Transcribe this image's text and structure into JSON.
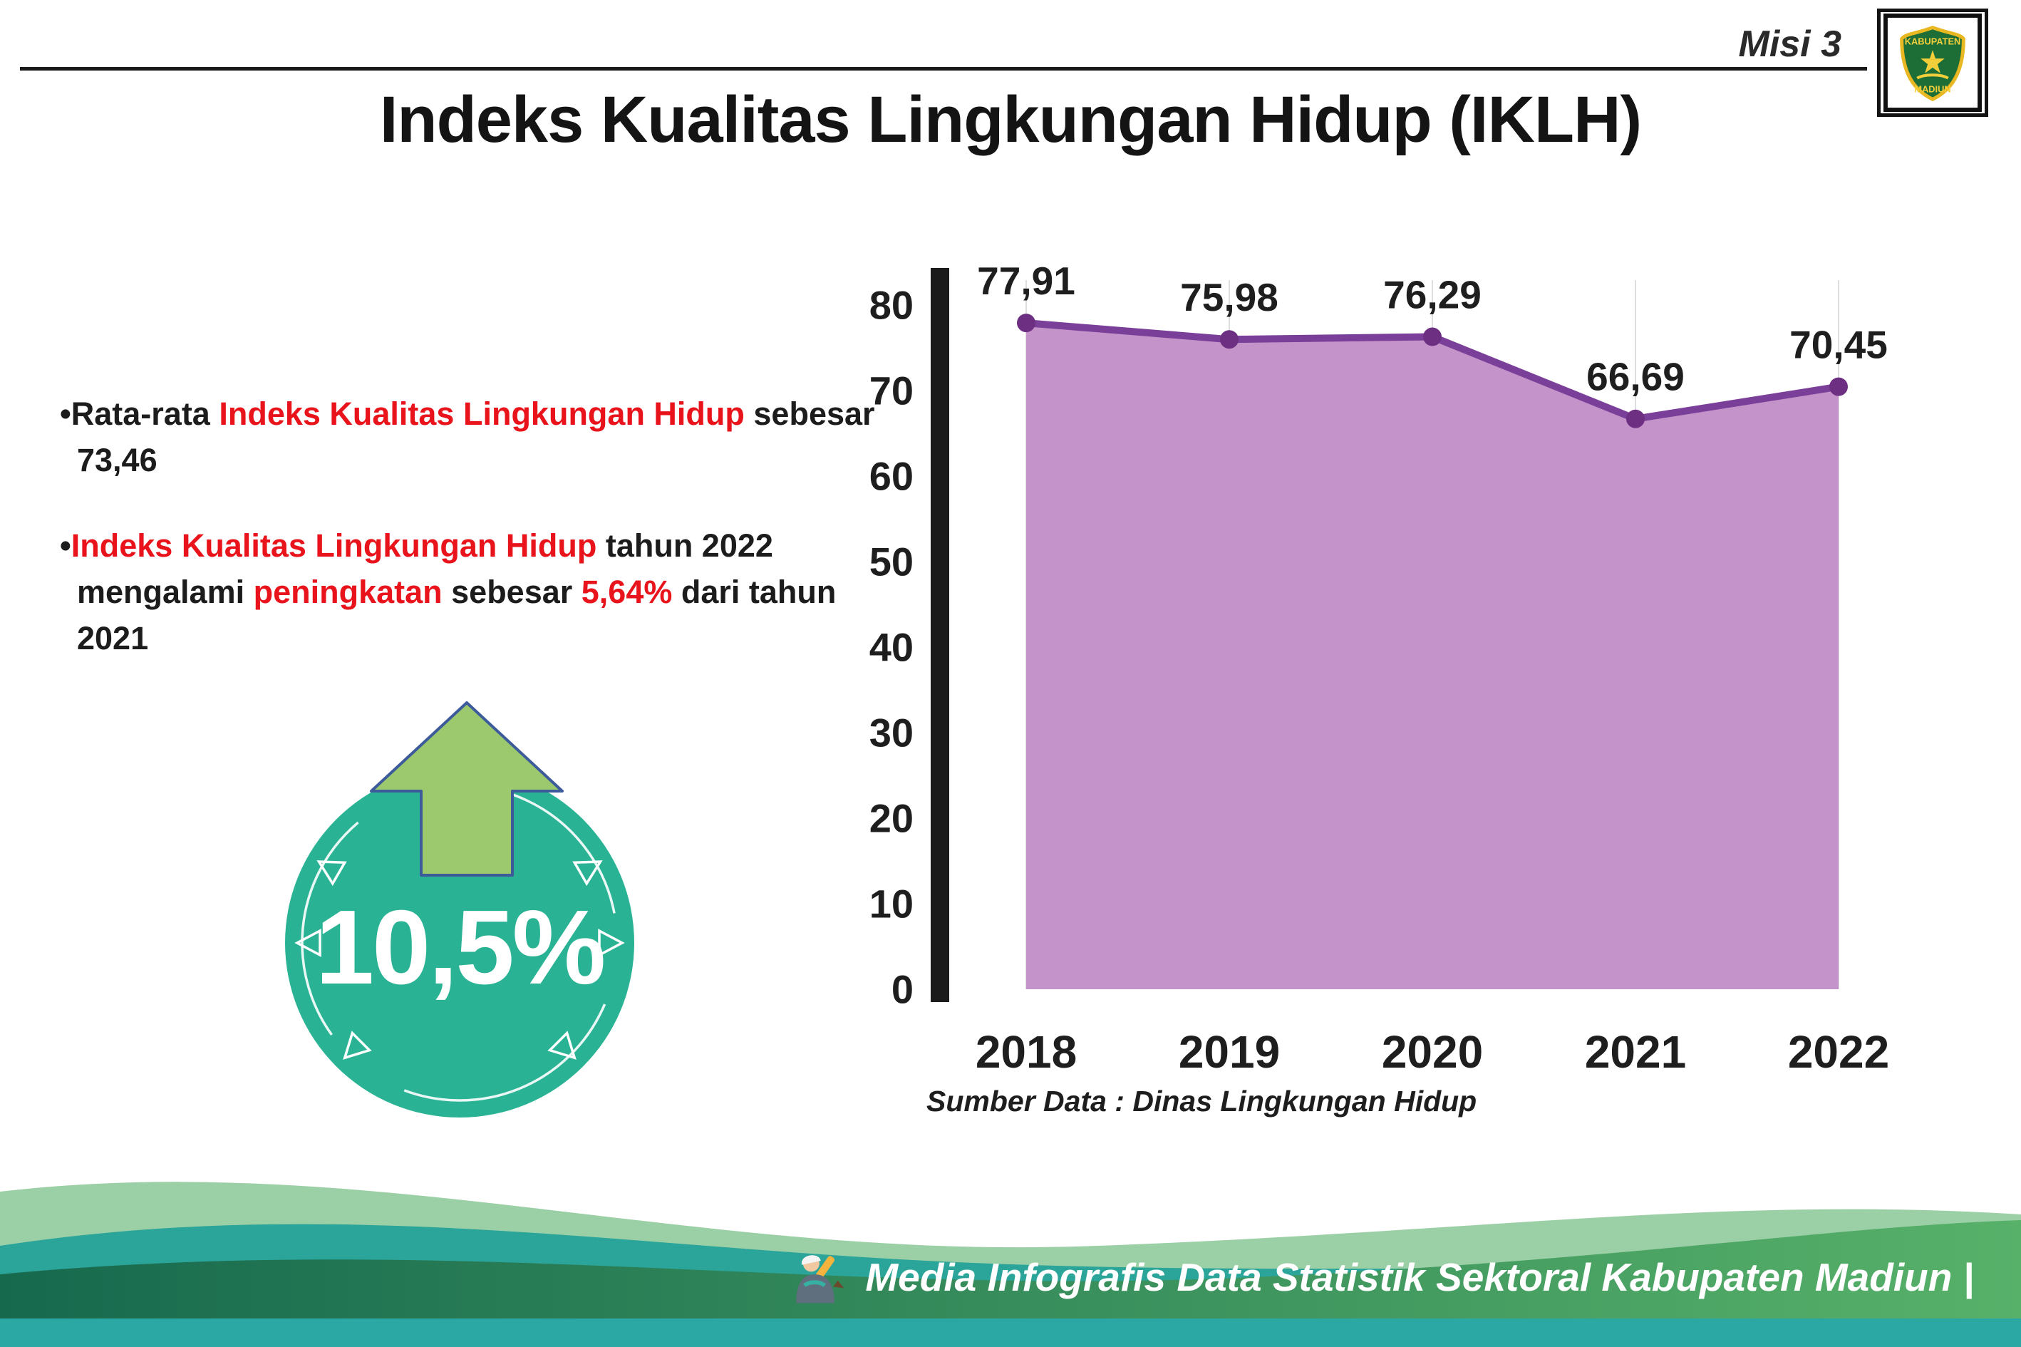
{
  "header": {
    "misi_label": "Misi 3",
    "title": "Indeks Kualitas Lingkungan Hidup (IKLH)",
    "logo_top_text": "KABUPATEN",
    "logo_bottom_text": "MADIUN"
  },
  "bullets": {
    "dot": "•",
    "item1": {
      "pre": "Rata-rata ",
      "highlight": "Indeks Kualitas Lingkungan Hidup",
      "post": " sebesar 73,46"
    },
    "item2": {
      "highlight1": "Indeks Kualitas Lingkungan Hidup",
      "mid1": " tahun 2022 mengalami ",
      "highlight2": "peningkatan",
      "mid2": " sebesar ",
      "highlight3": "5,64%",
      "post": " dari tahun 2021"
    }
  },
  "badge": {
    "value": "10,5%"
  },
  "chart_data": {
    "type": "area",
    "title": "",
    "x": [
      "2018",
      "2019",
      "2020",
      "2021",
      "2022"
    ],
    "values": [
      77.91,
      75.98,
      76.29,
      66.69,
      70.45
    ],
    "point_labels": [
      "77,91",
      "75,98",
      "76,29",
      "66,69",
      "70,45"
    ],
    "ylim": [
      0,
      80
    ],
    "yticks": [
      0,
      10,
      20,
      30,
      40,
      50,
      60,
      70,
      80
    ],
    "xlabel": "",
    "ylabel": "",
    "grid": "vertical-light",
    "legend": "none",
    "line_color": "#7a3f98",
    "point_color": "#6d2f82",
    "fill_color": "#c493c9",
    "source": "Sumber Data : Dinas Lingkungan Hidup"
  },
  "footer": {
    "caption": "Media Infografis Data Statistik Sektoral Kabupaten Madiun |"
  }
}
